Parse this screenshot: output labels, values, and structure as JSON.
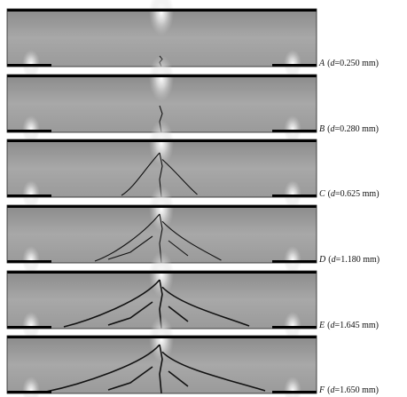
{
  "panels": [
    {
      "letter": "A",
      "open": "(",
      "variable": "d",
      "rest": "=0.250 mm)"
    },
    {
      "letter": "B",
      "open": "(",
      "variable": "d",
      "rest": "=0.280 mm)"
    },
    {
      "letter": "C",
      "open": "(",
      "variable": "d",
      "rest": "=0.625 mm)"
    },
    {
      "letter": "D",
      "open": "(",
      "variable": "d",
      "rest": "=1.180 mm)"
    },
    {
      "letter": "E",
      "open": "(",
      "variable": "d",
      "rest": "=1.645 mm)"
    },
    {
      "letter": "F",
      "open": "(",
      "variable": "d",
      "rest": "=1.650 mm)"
    }
  ]
}
